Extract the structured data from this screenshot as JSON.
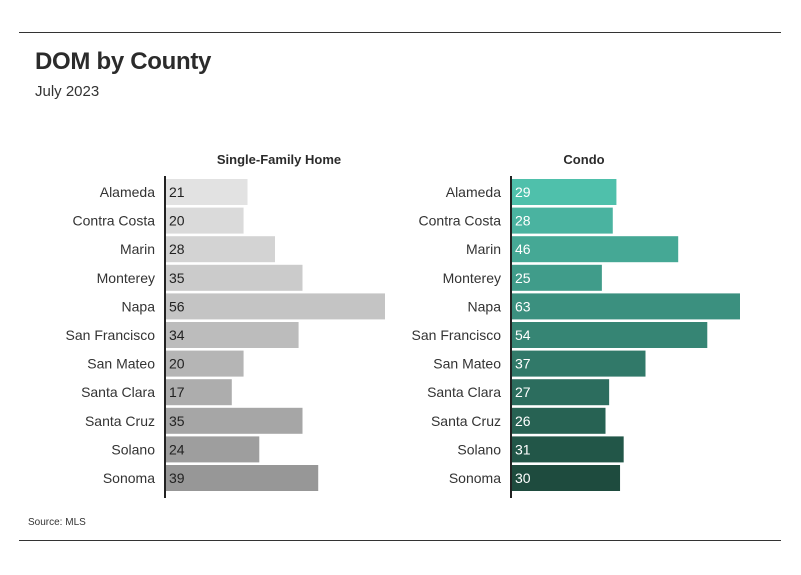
{
  "header": {
    "title": "DOM by County",
    "subtitle": "July 2023"
  },
  "footer": {
    "source": "Source: MLS"
  },
  "chart_data": [
    {
      "type": "bar",
      "orientation": "horizontal",
      "title": "Single-Family Home",
      "categories": [
        "Alameda",
        "Contra Costa",
        "Marin",
        "Monterey",
        "Napa",
        "San Francisco",
        "San Mateo",
        "Santa Clara",
        "Santa Cruz",
        "Solano",
        "Sonoma"
      ],
      "values": [
        21,
        20,
        28,
        35,
        56,
        34,
        20,
        17,
        35,
        24,
        39
      ],
      "xlim": [
        0,
        56
      ],
      "grid": false,
      "colors": [
        "#e2e2e2",
        "#dadada",
        "#d3d3d3",
        "#cbcbcb",
        "#c4c4c4",
        "#bcbcbc",
        "#b5b5b5",
        "#adadad",
        "#a6a6a6",
        "#9e9e9e",
        "#979797"
      ],
      "label_color": "#222222"
    },
    {
      "type": "bar",
      "orientation": "horizontal",
      "title": "Condo",
      "categories": [
        "Alameda",
        "Contra Costa",
        "Marin",
        "Monterey",
        "Napa",
        "San Francisco",
        "San Mateo",
        "Santa Clara",
        "Santa Cruz",
        "Solano",
        "Sonoma"
      ],
      "values": [
        29,
        28,
        46,
        25,
        63,
        54,
        37,
        27,
        26,
        31,
        30
      ],
      "xlim": [
        0,
        63
      ],
      "grid": false,
      "colors": [
        "#4fc0ab",
        "#4ab3a0",
        "#45a895",
        "#409c8a",
        "#3b907f",
        "#368574",
        "#317969",
        "#2c6d5e",
        "#276253",
        "#225648",
        "#1e4b3e"
      ],
      "label_color": "#ffffff"
    }
  ]
}
